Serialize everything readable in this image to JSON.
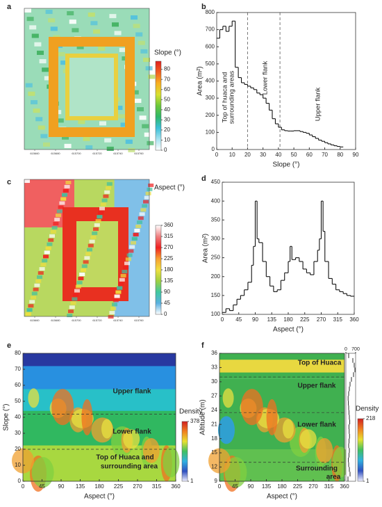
{
  "chart_data": [
    {
      "panel": "a",
      "type": "map",
      "xlim": [
        615650,
        615770
      ],
      "xticks": [
        615660,
        615680,
        615700,
        615720,
        615740,
        615760
      ],
      "colorbar": {
        "title": "Slope (°)",
        "lim": [
          0,
          88
        ],
        "ticks": [
          0,
          10,
          20,
          30,
          40,
          50,
          60,
          70,
          80
        ],
        "colors": [
          "#ffffff",
          "#a6e3f0",
          "#3cc0d8",
          "#2fb86a",
          "#6cc83a",
          "#d8e030",
          "#f8b020",
          "#f06020",
          "#e02020"
        ]
      }
    },
    {
      "panel": "b",
      "type": "step",
      "xlabel": "Slope (°)",
      "ylabel": "Area (m²)",
      "x": [
        0,
        2,
        4,
        6,
        8,
        10,
        12,
        14,
        16,
        18,
        20,
        22,
        24,
        26,
        28,
        30,
        32,
        34,
        36,
        38,
        40,
        42,
        44,
        46,
        48,
        50,
        52,
        54,
        56,
        58,
        60,
        62,
        64,
        66,
        68,
        70,
        72,
        74,
        76,
        78,
        80
      ],
      "values": [
        650,
        700,
        720,
        690,
        720,
        750,
        480,
        420,
        390,
        380,
        370,
        360,
        350,
        330,
        320,
        300,
        270,
        230,
        180,
        150,
        130,
        115,
        110,
        108,
        108,
        110,
        110,
        105,
        100,
        95,
        85,
        75,
        65,
        55,
        48,
        40,
        33,
        27,
        22,
        18,
        15
      ],
      "xlim": [
        0,
        90
      ],
      "ylim": [
        0,
        800
      ],
      "xticks": [
        0,
        10,
        20,
        30,
        40,
        50,
        60,
        70,
        80,
        90
      ],
      "yticks": [
        0,
        100,
        200,
        300,
        400,
        500,
        600,
        700,
        800
      ],
      "dividers": [
        20,
        41
      ],
      "annotations": [
        "Top of huaca and",
        "surrounding  areas",
        "Lower flank",
        "Upper flank"
      ]
    },
    {
      "panel": "c",
      "type": "map",
      "xlim": [
        615650,
        615770
      ],
      "xticks": [
        615660,
        615680,
        615700,
        615720,
        615740,
        615760
      ],
      "colorbar": {
        "title": "Aspect (°)",
        "lim": [
          0,
          360
        ],
        "ticks": [
          0,
          45,
          90,
          135,
          180,
          225,
          270,
          315,
          360
        ],
        "colors": [
          "#ffffff",
          "#5ab0e0",
          "#40c8a0",
          "#a0d040",
          "#f0e040",
          "#f8a030",
          "#f02020",
          "#f08080",
          "#ffffff"
        ]
      }
    },
    {
      "panel": "d",
      "type": "step",
      "xlabel": "Aspect (°)",
      "ylabel": "Area (m²)",
      "x": [
        0,
        10,
        20,
        30,
        40,
        50,
        60,
        70,
        80,
        85,
        90,
        95,
        100,
        110,
        120,
        130,
        140,
        150,
        160,
        170,
        180,
        185,
        190,
        200,
        210,
        220,
        230,
        240,
        250,
        260,
        265,
        270,
        275,
        280,
        290,
        300,
        310,
        320,
        330,
        340,
        350
      ],
      "values": [
        105,
        115,
        110,
        125,
        140,
        150,
        165,
        185,
        230,
        280,
        400,
        300,
        290,
        240,
        200,
        175,
        160,
        165,
        190,
        210,
        240,
        280,
        245,
        250,
        240,
        220,
        210,
        205,
        240,
        270,
        300,
        400,
        320,
        240,
        195,
        180,
        165,
        160,
        155,
        150,
        148
      ],
      "xlim": [
        0,
        360
      ],
      "ylim": [
        100,
        450
      ],
      "xticks": [
        0,
        45,
        90,
        135,
        180,
        225,
        270,
        315,
        360
      ],
      "yticks": [
        100,
        150,
        200,
        250,
        300,
        350,
        400,
        450
      ]
    },
    {
      "panel": "e",
      "type": "density",
      "xlabel": "Aspect (°)",
      "ylabel": "Slope (°)",
      "xlim": [
        0,
        360
      ],
      "ylim": [
        0,
        80
      ],
      "xticks": [
        0,
        45,
        90,
        135,
        180,
        225,
        270,
        315,
        360
      ],
      "yticks": [
        0,
        10,
        20,
        30,
        40,
        50,
        60,
        70,
        80
      ],
      "dividers": [
        20,
        42
      ],
      "annotations": [
        "Upper flank",
        "Lower flank",
        "Top of Huaca and",
        "surrounding area"
      ],
      "colorbar": {
        "title": "Density",
        "lim": [
          1,
          378
        ],
        "ticks": [
          1,
          378
        ]
      }
    },
    {
      "panel": "f",
      "type": "density",
      "xlabel": "Aspect (°)",
      "ylabel": "Altitude (m)",
      "xlim": [
        0,
        360
      ],
      "ylim": [
        9,
        36
      ],
      "xticks": [
        0,
        45,
        90,
        135,
        180,
        225,
        270,
        315,
        360
      ],
      "yticks": [
        9,
        12,
        15,
        18,
        21,
        24,
        27,
        30,
        33,
        36
      ],
      "dividers": [
        13,
        23.5,
        31
      ],
      "annotations": [
        "Top of Huaca",
        "Upper flank",
        "Lower flank",
        "Surrounding",
        "area"
      ],
      "profile": {
        "lim": [
          0,
          700
        ],
        "ticks": [
          0,
          700
        ],
        "values": [
          150,
          300,
          250,
          200,
          180,
          220,
          250,
          200,
          230,
          260,
          240,
          220,
          280,
          250,
          220,
          200,
          180,
          160,
          200,
          250,
          300,
          400,
          550,
          650,
          600,
          500,
          200
        ]
      },
      "colorbar": {
        "title": "Density",
        "lim": [
          1,
          218
        ],
        "ticks": [
          1,
          218
        ]
      }
    }
  ]
}
